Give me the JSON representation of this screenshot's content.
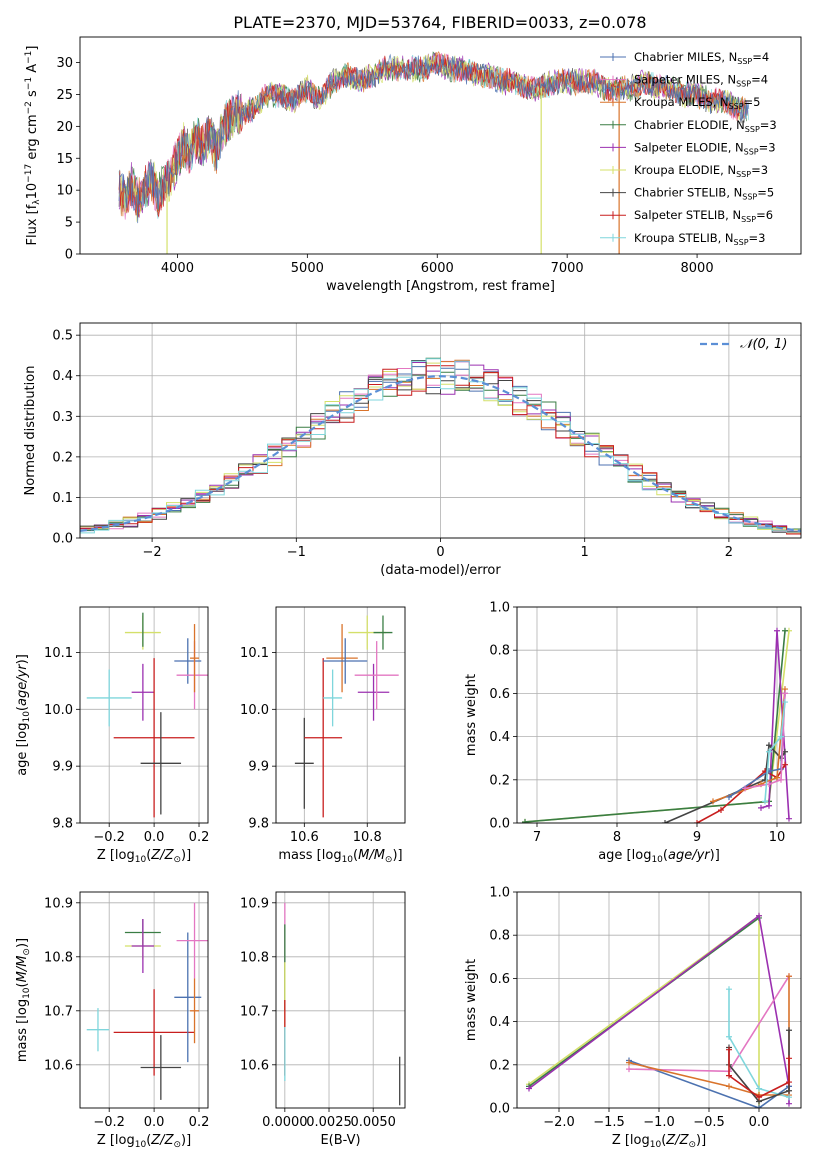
{
  "title": "PLATE=2370, MJD=53764, FIBERID=0033, z=0.078",
  "colors": {
    "Chabrier MILES": "#4c72b0",
    "Salpeter MILES": "#e377c2",
    "Kroupa MILES": "#d9732b",
    "Chabrier ELODIE": "#3a7d44",
    "Salpeter ELODIE": "#9b30b0",
    "Kroupa ELODIE": "#d4e06a",
    "Chabrier STELIB": "#444444",
    "Salpeter STELIB": "#c81e1e",
    "Kroupa STELIB": "#7fd6dc",
    "normal": "#5b8fd6"
  },
  "chart_data": [
    {
      "type": "line",
      "id": "spectrum",
      "xlabel": "wavelength [Angstrom, rest frame]",
      "ylabel": "Flux [f",
      "xlim": [
        3250,
        8800
      ],
      "ylim": [
        0,
        34
      ],
      "xticks": [
        "4000",
        "5000",
        "6000",
        "7000",
        "8000"
      ],
      "xtick_values": [
        4000,
        5000,
        6000,
        7000,
        8000
      ],
      "yticks": [
        "0",
        "5",
        "10",
        "15",
        "20",
        "25",
        "30"
      ],
      "ytick_values": [
        0,
        5,
        10,
        15,
        20,
        25,
        30
      ],
      "legend_position": "top-right",
      "legend": [
        {
          "label": "Chabrier MILES, N",
          "sub": "SSP",
          "suffix": "=4",
          "color": "#4c72b0"
        },
        {
          "label": "Salpeter MILES, N",
          "sub": "SSP",
          "suffix": "=4",
          "color": "#e377c2"
        },
        {
          "label": "Kroupa MILES, N",
          "sub": "SSP",
          "suffix": "=5",
          "color": "#d9732b"
        },
        {
          "label": "Chabrier ELODIE, N",
          "sub": "SSP",
          "suffix": "=3",
          "color": "#3a7d44"
        },
        {
          "label": "Salpeter ELODIE, N",
          "sub": "SSP",
          "suffix": "=3",
          "color": "#9b30b0"
        },
        {
          "label": "Kroupa ELODIE, N",
          "sub": "SSP",
          "suffix": "=3",
          "color": "#d4e06a"
        },
        {
          "label": "Chabrier STELIB, N",
          "sub": "SSP",
          "suffix": "=5",
          "color": "#444444"
        },
        {
          "label": "Salpeter STELIB, N",
          "sub": "SSP",
          "suffix": "=6",
          "color": "#c81e1e"
        },
        {
          "label": "Kroupa STELIB, N",
          "sub": "SSP",
          "suffix": "=3",
          "color": "#7fd6dc"
        }
      ],
      "x": [
        3550,
        3600,
        3650,
        3700,
        3750,
        3800,
        3850,
        3900,
        3950,
        4000,
        4050,
        4100,
        4150,
        4200,
        4250,
        4300,
        4350,
        4400,
        4450,
        4500,
        4600,
        4700,
        4800,
        4900,
        5000,
        5100,
        5200,
        5300,
        5400,
        5500,
        5600,
        5700,
        5800,
        5900,
        6000,
        6100,
        6200,
        6300,
        6400,
        6500,
        6600,
        6700,
        6800,
        6900,
        7000,
        7100,
        7200,
        7300,
        7400,
        7500,
        7600,
        7700,
        7800,
        7900,
        8000,
        8100,
        8200,
        8300,
        8400
      ],
      "y": [
        10,
        9,
        11,
        8,
        10,
        12,
        9,
        11,
        12,
        15,
        17,
        16,
        18,
        17,
        19,
        16,
        20,
        21,
        22,
        22,
        23,
        25,
        25,
        24,
        26,
        24,
        27,
        28,
        27,
        28,
        29,
        29,
        29,
        29,
        30,
        29,
        29,
        28,
        28,
        27,
        27,
        26,
        26,
        27,
        27,
        27,
        27,
        26,
        26,
        26,
        27,
        26,
        26,
        25,
        25,
        24,
        24,
        23,
        22
      ],
      "drops": [
        {
          "x": 3920,
          "color": "#d4e06a"
        },
        {
          "x": 6800,
          "color": "#d4e06a"
        },
        {
          "x": 7400,
          "color": "#d9732b"
        }
      ]
    },
    {
      "type": "line",
      "id": "residuals",
      "xlabel": "(data-model)/error",
      "ylabel": "Normed distribution",
      "xlim": [
        -2.5,
        2.5
      ],
      "ylim": [
        0,
        0.53
      ],
      "xticks": [
        "−2",
        "−1",
        "0",
        "1",
        "2"
      ],
      "xtick_values": [
        -2,
        -1,
        0,
        1,
        2
      ],
      "yticks": [
        "0.0",
        "0.1",
        "0.2",
        "0.3",
        "0.4",
        "0.5"
      ],
      "ytick_values": [
        0,
        0.1,
        0.2,
        0.3,
        0.4,
        0.5
      ],
      "legend_label": "𝒩(0, 1)",
      "legend_position": "top-right",
      "bin_width": 0.1
    },
    {
      "type": "scatter",
      "id": "age-vs-z",
      "xlabel": "Z [log",
      "ylabel": "age  [log",
      "xlim": [
        -0.33,
        0.24
      ],
      "ylim": [
        9.8,
        10.18
      ],
      "xticks": [
        "−0.2",
        "0.0",
        "0.2"
      ],
      "xtick_values": [
        -0.2,
        0,
        0.2
      ],
      "yticks": [
        "9.8",
        "9.9",
        "10.0",
        "10.1"
      ],
      "ytick_values": [
        9.8,
        9.9,
        10.0,
        10.1
      ],
      "points": [
        {
          "x": -0.2,
          "y": 10.02,
          "xerr": 0.1,
          "yerr": 0.05,
          "color": "#7fd6dc"
        },
        {
          "x": -0.05,
          "y": 10.135,
          "xerr": 0.08,
          "yerr": 0.03,
          "color": "#d4e06a"
        },
        {
          "x": -0.05,
          "y": 10.03,
          "xerr": 0.05,
          "yerr": 0.05,
          "color": "#9b30b0"
        },
        {
          "x": 0.0,
          "y": 9.95,
          "xerr": 0.18,
          "yerr": 0.14,
          "color": "#c81e1e"
        },
        {
          "x": 0.03,
          "y": 9.905,
          "xerr": 0.09,
          "yerr": 0.09,
          "color": "#444444"
        },
        {
          "x": 0.15,
          "y": 10.085,
          "xerr": 0.06,
          "yerr": 0.04,
          "color": "#4c72b0"
        },
        {
          "x": 0.18,
          "y": 10.06,
          "xerr": 0.08,
          "yerr": 0.06,
          "color": "#e377c2"
        },
        {
          "x": 0.18,
          "y": 10.09,
          "xerr": 0.02,
          "yerr": 0.06,
          "color": "#d9732b"
        },
        {
          "x": -0.05,
          "y": 10.14,
          "xerr": 0.0,
          "yerr": 0.03,
          "color": "#3a7d44"
        }
      ]
    },
    {
      "type": "scatter",
      "id": "age-vs-mass",
      "xlabel": "mass [log",
      "ylabel": "",
      "xlim": [
        10.51,
        10.92
      ],
      "ylim": [
        9.8,
        10.18
      ],
      "xticks": [
        "10.6",
        "10.8"
      ],
      "xtick_values": [
        10.6,
        10.8
      ],
      "yticks": [
        "9.8",
        "9.9",
        "10.0",
        "10.1"
      ],
      "ytick_values": [
        9.8,
        9.9,
        10.0,
        10.1
      ],
      "points": [
        {
          "x": 10.6,
          "y": 9.905,
          "xerr": 0.03,
          "yerr": 0.08,
          "color": "#444444"
        },
        {
          "x": 10.66,
          "y": 9.95,
          "xerr": 0.06,
          "yerr": 0.14,
          "color": "#c81e1e"
        },
        {
          "x": 10.69,
          "y": 10.02,
          "xerr": 0.03,
          "yerr": 0.05,
          "color": "#7fd6dc"
        },
        {
          "x": 10.8,
          "y": 10.135,
          "xerr": 0.06,
          "yerr": 0.03,
          "color": "#d4e06a"
        },
        {
          "x": 10.82,
          "y": 10.03,
          "xerr": 0.05,
          "yerr": 0.05,
          "color": "#9b30b0"
        },
        {
          "x": 10.72,
          "y": 10.09,
          "xerr": 0.05,
          "yerr": 0.06,
          "color": "#d9732b"
        },
        {
          "x": 10.73,
          "y": 10.085,
          "xerr": 0.07,
          "yerr": 0.04,
          "color": "#4c72b0"
        },
        {
          "x": 10.83,
          "y": 10.06,
          "xerr": 0.07,
          "yerr": 0.06,
          "color": "#e377c2"
        },
        {
          "x": 10.85,
          "y": 10.135,
          "xerr": 0.03,
          "yerr": 0.03,
          "color": "#3a7d44"
        }
      ]
    },
    {
      "type": "line",
      "id": "weight-vs-age",
      "xlabel": "age  [log",
      "ylabel": "mass weight",
      "xlim": [
        6.75,
        10.3
      ],
      "ylim": [
        0,
        1.0
      ],
      "xticks": [
        "7",
        "8",
        "9",
        "10"
      ],
      "xtick_values": [
        7,
        8,
        9,
        10
      ],
      "yticks": [
        "0.0",
        "0.2",
        "0.4",
        "0.6",
        "0.8",
        "1.0"
      ],
      "ytick_values": [
        0,
        0.2,
        0.4,
        0.6,
        0.8,
        1.0
      ],
      "series": [
        {
          "color": "#d4e06a",
          "x": [
            6.85,
            9.9,
            10.15
          ],
          "y": [
            0.005,
            0.1,
            0.89
          ]
        },
        {
          "color": "#3a7d44",
          "x": [
            6.85,
            9.9,
            10.1
          ],
          "y": [
            0.005,
            0.1,
            0.89
          ]
        },
        {
          "color": "#9b30b0",
          "x": [
            9.8,
            9.9,
            10.0,
            10.15
          ],
          "y": [
            0.07,
            0.08,
            0.89,
            0.02
          ]
        },
        {
          "color": "#444444",
          "x": [
            8.6,
            9.85,
            9.9,
            10.05,
            10.1
          ],
          "y": [
            0.0,
            0.2,
            0.36,
            0.3,
            0.33
          ]
        },
        {
          "color": "#c81e1e",
          "x": [
            9.0,
            9.3,
            9.85,
            10.0,
            10.1
          ],
          "y": [
            0.0,
            0.06,
            0.24,
            0.21,
            0.27
          ]
        },
        {
          "color": "#d9732b",
          "x": [
            9.2,
            9.8,
            10.0,
            10.1
          ],
          "y": [
            0.1,
            0.18,
            0.21,
            0.62
          ]
        },
        {
          "color": "#4c72b0",
          "x": [
            9.4,
            9.9,
            10.05,
            10.1
          ],
          "y": [
            0.12,
            0.24,
            0.25,
            0.6
          ]
        },
        {
          "color": "#e377c2",
          "x": [
            9.6,
            9.9,
            10.05,
            10.1
          ],
          "y": [
            0.16,
            0.18,
            0.2,
            0.6
          ]
        },
        {
          "color": "#7fd6dc",
          "x": [
            9.85,
            9.9,
            10.05,
            10.1
          ],
          "y": [
            0.1,
            0.33,
            0.4,
            0.56
          ]
        }
      ]
    },
    {
      "type": "scatter",
      "id": "mass-vs-z",
      "xlabel": "Z [log",
      "ylabel": "mass [log",
      "xlim": [
        -0.33,
        0.24
      ],
      "ylim": [
        10.52,
        10.92
      ],
      "xticks": [
        "−0.2",
        "0.0",
        "0.2"
      ],
      "xtick_values": [
        -0.2,
        0,
        0.2
      ],
      "yticks": [
        "10.6",
        "10.7",
        "10.8",
        "10.9"
      ],
      "ytick_values": [
        10.6,
        10.7,
        10.8,
        10.9
      ],
      "points": [
        {
          "x": -0.05,
          "y": 10.845,
          "xerr": 0.08,
          "yerr": 0.025,
          "color": "#3a7d44"
        },
        {
          "x": -0.05,
          "y": 10.82,
          "xerr": 0.08,
          "yerr": 0.025,
          "color": "#d4e06a"
        },
        {
          "x": -0.05,
          "y": 10.82,
          "xerr": 0.05,
          "yerr": 0.05,
          "color": "#9b30b0"
        },
        {
          "x": -0.25,
          "y": 10.665,
          "xerr": 0.05,
          "yerr": 0.04,
          "color": "#7fd6dc"
        },
        {
          "x": 0.0,
          "y": 10.66,
          "xerr": 0.18,
          "yerr": 0.08,
          "color": "#c81e1e"
        },
        {
          "x": 0.03,
          "y": 10.595,
          "xerr": 0.09,
          "yerr": 0.06,
          "color": "#444444"
        },
        {
          "x": 0.15,
          "y": 10.725,
          "xerr": 0.06,
          "yerr": 0.12,
          "color": "#4c72b0"
        },
        {
          "x": 0.18,
          "y": 10.83,
          "xerr": 0.08,
          "yerr": 0.07,
          "color": "#e377c2"
        },
        {
          "x": 0.18,
          "y": 10.7,
          "xerr": 0.02,
          "yerr": 0.06,
          "color": "#d9732b"
        }
      ]
    },
    {
      "type": "scatter",
      "id": "mass-vs-ebv",
      "xlabel": "E(B-V)",
      "ylabel": "",
      "xlim": [
        -0.0005,
        0.0068
      ],
      "ylim": [
        10.52,
        10.92
      ],
      "xticks": [
        "0.0000",
        "0.0025",
        "0.0050"
      ],
      "xtick_values": [
        0,
        0.0025,
        0.005
      ],
      "yticks": [
        "10.6",
        "10.7",
        "10.8",
        "10.9"
      ],
      "ytick_values": [
        10.6,
        10.7,
        10.8,
        10.9
      ],
      "points": [
        {
          "x": 0.0,
          "y": 10.8,
          "xerr": 0,
          "yerr": 0.1,
          "color": "#e377c2"
        },
        {
          "x": 0.0,
          "y": 10.78,
          "xerr": 0,
          "yerr": 0.08,
          "color": "#3a7d44"
        },
        {
          "x": 0.0,
          "y": 10.73,
          "xerr": 0,
          "yerr": 0.06,
          "color": "#d4e06a"
        },
        {
          "x": 0.0,
          "y": 10.65,
          "xerr": 0,
          "yerr": 0.07,
          "color": "#c81e1e"
        },
        {
          "x": 0.0,
          "y": 10.62,
          "xerr": 0,
          "yerr": 0.05,
          "color": "#7fd6dc"
        },
        {
          "x": 0.0065,
          "y": 10.57,
          "xerr": 0,
          "yerr": 0.045,
          "color": "#444444"
        }
      ]
    },
    {
      "type": "line",
      "id": "weight-vs-z",
      "xlabel": "Z [log",
      "ylabel": "mass weight",
      "xlim": [
        -2.42,
        0.42
      ],
      "ylim": [
        0,
        1.0
      ],
      "xticks": [
        "−2.0",
        "−1.5",
        "−1.0",
        "−0.5",
        "0.0"
      ],
      "xtick_values": [
        -2,
        -1.5,
        -1,
        -0.5,
        0
      ],
      "yticks": [
        "0.0",
        "0.2",
        "0.4",
        "0.6",
        "0.8",
        "1.0"
      ],
      "ytick_values": [
        0,
        0.2,
        0.4,
        0.6,
        0.8,
        1.0
      ],
      "series": [
        {
          "color": "#d4e06a",
          "x": [
            -2.3,
            0.0,
            0.0
          ],
          "y": [
            0.11,
            0.89,
            0.0
          ]
        },
        {
          "color": "#3a7d44",
          "x": [
            -2.3,
            0.0
          ],
          "y": [
            0.1,
            0.88
          ]
        },
        {
          "color": "#9b30b0",
          "x": [
            -2.3,
            0.0,
            0.3,
            0.3
          ],
          "y": [
            0.09,
            0.89,
            0.1,
            0.02
          ]
        },
        {
          "color": "#4c72b0",
          "x": [
            -1.3,
            0.0,
            0.3
          ],
          "y": [
            0.22,
            0.0,
            0.1
          ]
        },
        {
          "color": "#e377c2",
          "x": [
            -1.3,
            -0.3,
            0.3
          ],
          "y": [
            0.18,
            0.17,
            0.61
          ]
        },
        {
          "color": "#d9732b",
          "x": [
            -1.3,
            -0.3,
            0.0,
            0.3,
            0.3
          ],
          "y": [
            0.21,
            0.1,
            0.06,
            0.06,
            0.61
          ]
        },
        {
          "color": "#7fd6dc",
          "x": [
            -0.3,
            -0.3,
            0.0,
            0.3
          ],
          "y": [
            0.55,
            0.33,
            0.09,
            0.05
          ]
        },
        {
          "color": "#444444",
          "x": [
            -0.3,
            -0.3,
            0.0,
            0.3,
            0.3
          ],
          "y": [
            0.28,
            0.2,
            0.03,
            0.08,
            0.36
          ]
        },
        {
          "color": "#c81e1e",
          "x": [
            -0.3,
            -0.3,
            0.0,
            0.3,
            0.3
          ],
          "y": [
            0.27,
            0.15,
            0.05,
            0.12,
            0.23
          ]
        }
      ]
    }
  ]
}
